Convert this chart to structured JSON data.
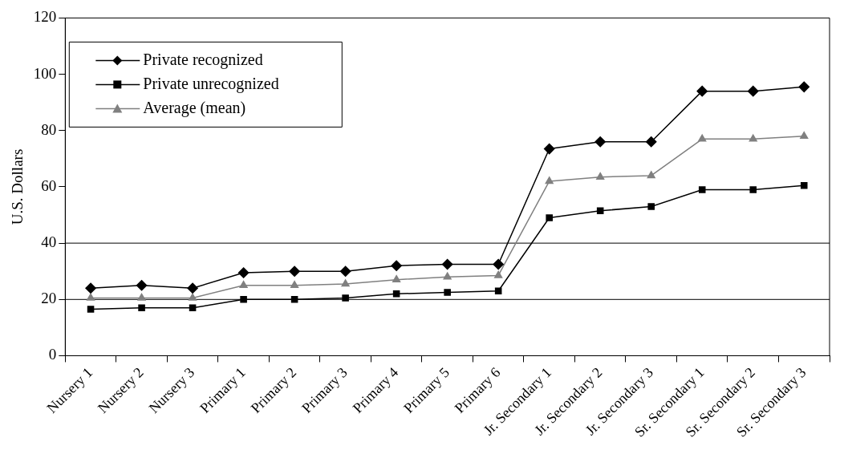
{
  "chart_data": {
    "type": "line",
    "ylabel": "U.S. Dollars",
    "categories": [
      "Nursery 1",
      "Nursery 2",
      "Nursery 3",
      "Primary 1",
      "Primary 2",
      "Primary 3",
      "Primary 4",
      "Primary 5",
      "Primary 6",
      "Jr. Secondary 1",
      "Jr. Secondary 2",
      "Jr. Secondary 3",
      "Sr. Secondary 1",
      "Sr. Secondary 2",
      "Sr. Secondary 3"
    ],
    "series": [
      {
        "name": "Private recognized",
        "color": "#000000",
        "marker": "diamond",
        "values": [
          24,
          25,
          24,
          29.5,
          30,
          30,
          32,
          32.5,
          32.5,
          73.5,
          76,
          76,
          94,
          94,
          95.5
        ]
      },
      {
        "name": "Private unrecognized",
        "color": "#000000",
        "marker": "square",
        "values": [
          16.5,
          17,
          17,
          20,
          20,
          20.5,
          22,
          22.5,
          23,
          49,
          51.5,
          53,
          59,
          59,
          60.5
        ]
      },
      {
        "name": "Average (mean)",
        "color": "#808080",
        "marker": "triangle",
        "values": [
          20.5,
          20.5,
          20.5,
          25,
          25,
          25.5,
          27,
          28,
          28.5,
          62,
          63.5,
          64,
          77,
          77,
          78
        ]
      }
    ],
    "ylim": [
      0,
      120
    ],
    "yticks": [
      0,
      20,
      40,
      60,
      80,
      100,
      120
    ],
    "ref_lines": [
      {
        "axis": "y",
        "value": 20
      },
      {
        "axis": "y",
        "value": 40
      }
    ],
    "legend": "top left",
    "grid": false
  }
}
